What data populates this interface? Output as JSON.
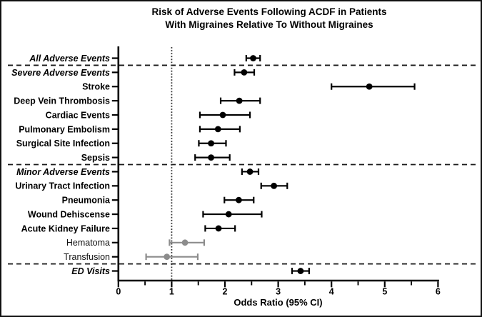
{
  "chart_data": {
    "type": "scatter",
    "variant": "forest-plot",
    "title_line1": "Risk of Adverse Events Following ACDF in Patients",
    "title_line2": "With Migraines Relative To Without Migraines",
    "xlabel": "Odds Ratio (95% CI)",
    "xlim": [
      0,
      6
    ],
    "x_major_ticks": [
      0,
      1,
      2,
      3,
      4,
      5,
      6
    ],
    "x_minor_tick_step": 0.5,
    "reference_line_x": 1,
    "grid": false,
    "legend": "none",
    "colors": {
      "black": "#000000",
      "gray": "#8c8c8c"
    },
    "separators_after_rows": [
      0,
      7,
      14
    ],
    "rows": [
      {
        "label": "All Adverse Events",
        "or": 2.53,
        "ci_low": 2.4,
        "ci_high": 2.66,
        "style": "bold-italic",
        "color": "black"
      },
      {
        "label": "Severe Adverse Events",
        "or": 2.36,
        "ci_low": 2.18,
        "ci_high": 2.55,
        "style": "bold-italic",
        "color": "black"
      },
      {
        "label": "Stroke",
        "or": 4.71,
        "ci_low": 4.0,
        "ci_high": 5.56,
        "style": "bold",
        "color": "black"
      },
      {
        "label": "Deep Vein Thrombosis",
        "or": 2.27,
        "ci_low": 1.92,
        "ci_high": 2.66,
        "style": "bold",
        "color": "black"
      },
      {
        "label": "Cardiac Events",
        "or": 1.96,
        "ci_low": 1.53,
        "ci_high": 2.47,
        "style": "bold",
        "color": "black"
      },
      {
        "label": "Pulmonary Embolism",
        "or": 1.87,
        "ci_low": 1.53,
        "ci_high": 2.28,
        "style": "bold",
        "color": "black"
      },
      {
        "label": "Surgical Site Infection",
        "or": 1.74,
        "ci_low": 1.51,
        "ci_high": 2.02,
        "style": "bold",
        "color": "black"
      },
      {
        "label": "Sepsis",
        "or": 1.74,
        "ci_low": 1.44,
        "ci_high": 2.09,
        "style": "bold",
        "color": "black"
      },
      {
        "label": "Minor Adverse Events",
        "or": 2.47,
        "ci_low": 2.32,
        "ci_high": 2.63,
        "style": "bold-italic",
        "color": "black"
      },
      {
        "label": "Urinary Tract Infection",
        "or": 2.92,
        "ci_low": 2.68,
        "ci_high": 3.17,
        "style": "bold",
        "color": "black"
      },
      {
        "label": "Pneumonia",
        "or": 2.26,
        "ci_low": 1.99,
        "ci_high": 2.54,
        "style": "bold",
        "color": "black"
      },
      {
        "label": "Wound Dehiscense",
        "or": 2.07,
        "ci_low": 1.59,
        "ci_high": 2.69,
        "style": "bold",
        "color": "black"
      },
      {
        "label": "Acute Kidney Failure",
        "or": 1.88,
        "ci_low": 1.63,
        "ci_high": 2.19,
        "style": "bold",
        "color": "black"
      },
      {
        "label": "Hematoma",
        "or": 1.25,
        "ci_low": 0.96,
        "ci_high": 1.61,
        "style": "regular",
        "color": "gray"
      },
      {
        "label": "Transfusion",
        "or": 0.91,
        "ci_low": 0.52,
        "ci_high": 1.49,
        "style": "regular",
        "color": "gray"
      },
      {
        "label": "ED Visits",
        "or": 3.42,
        "ci_low": 3.26,
        "ci_high": 3.58,
        "style": "bold-italic",
        "color": "black"
      }
    ]
  }
}
